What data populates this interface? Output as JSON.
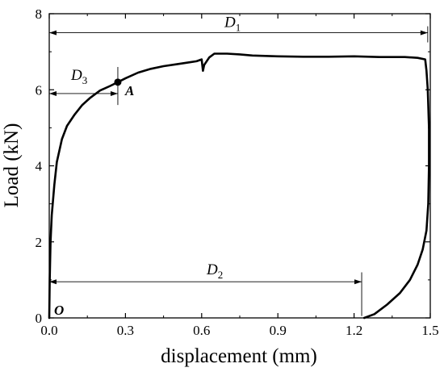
{
  "chart_data": {
    "type": "line",
    "xlabel": "displacement (mm)",
    "ylabel": "Load (kN)",
    "xlim": [
      0,
      1.5
    ],
    "ylim": [
      0,
      8
    ],
    "xticks": [
      "0.0",
      "0.3",
      "0.6",
      "0.9",
      "1.2",
      "1.5"
    ],
    "yticks": [
      "0",
      "2",
      "4",
      "6",
      "8"
    ],
    "grid": false,
    "series": [
      {
        "x": [
          0,
          0.002,
          0.005,
          0.01,
          0.02,
          0.03,
          0.05,
          0.07,
          0.1,
          0.13,
          0.16,
          0.2,
          0.24,
          0.27,
          0.3,
          0.35,
          0.4,
          0.45,
          0.5,
          0.55,
          0.58,
          0.6,
          0.605,
          0.61,
          0.63,
          0.65,
          0.7,
          0.75,
          0.8,
          0.9,
          1.0,
          1.1,
          1.2,
          1.3,
          1.4,
          1.45,
          1.48,
          1.485,
          1.49,
          1.495,
          1.495,
          1.492,
          1.485,
          1.47,
          1.45,
          1.42,
          1.38,
          1.33,
          1.28,
          1.24
        ],
        "y": [
          0,
          1.0,
          2.0,
          2.7,
          3.5,
          4.1,
          4.7,
          5.05,
          5.35,
          5.6,
          5.78,
          5.98,
          6.1,
          6.2,
          6.3,
          6.45,
          6.55,
          6.62,
          6.67,
          6.72,
          6.75,
          6.8,
          6.5,
          6.65,
          6.85,
          6.95,
          6.95,
          6.93,
          6.9,
          6.88,
          6.87,
          6.87,
          6.88,
          6.86,
          6.86,
          6.84,
          6.8,
          6.5,
          6.0,
          5.0,
          4.0,
          3.0,
          2.3,
          1.8,
          1.4,
          1.0,
          0.65,
          0.35,
          0.1,
          0
        ]
      }
    ]
  },
  "annotations": {
    "d1": {
      "label": "D",
      "sub": "1",
      "x_from": 0,
      "x_to": 1.49,
      "y": 7.5
    },
    "d2": {
      "label": "D",
      "sub": "2",
      "x_from": 0,
      "x_to": 1.23,
      "y": 0.95
    },
    "d3": {
      "label": "D",
      "sub": "3",
      "x_from": 0,
      "x_to": 0.27,
      "y": 5.9
    },
    "point_a": {
      "label": "A",
      "x": 0.27,
      "y": 6.2
    },
    "origin": {
      "label": "O"
    }
  }
}
